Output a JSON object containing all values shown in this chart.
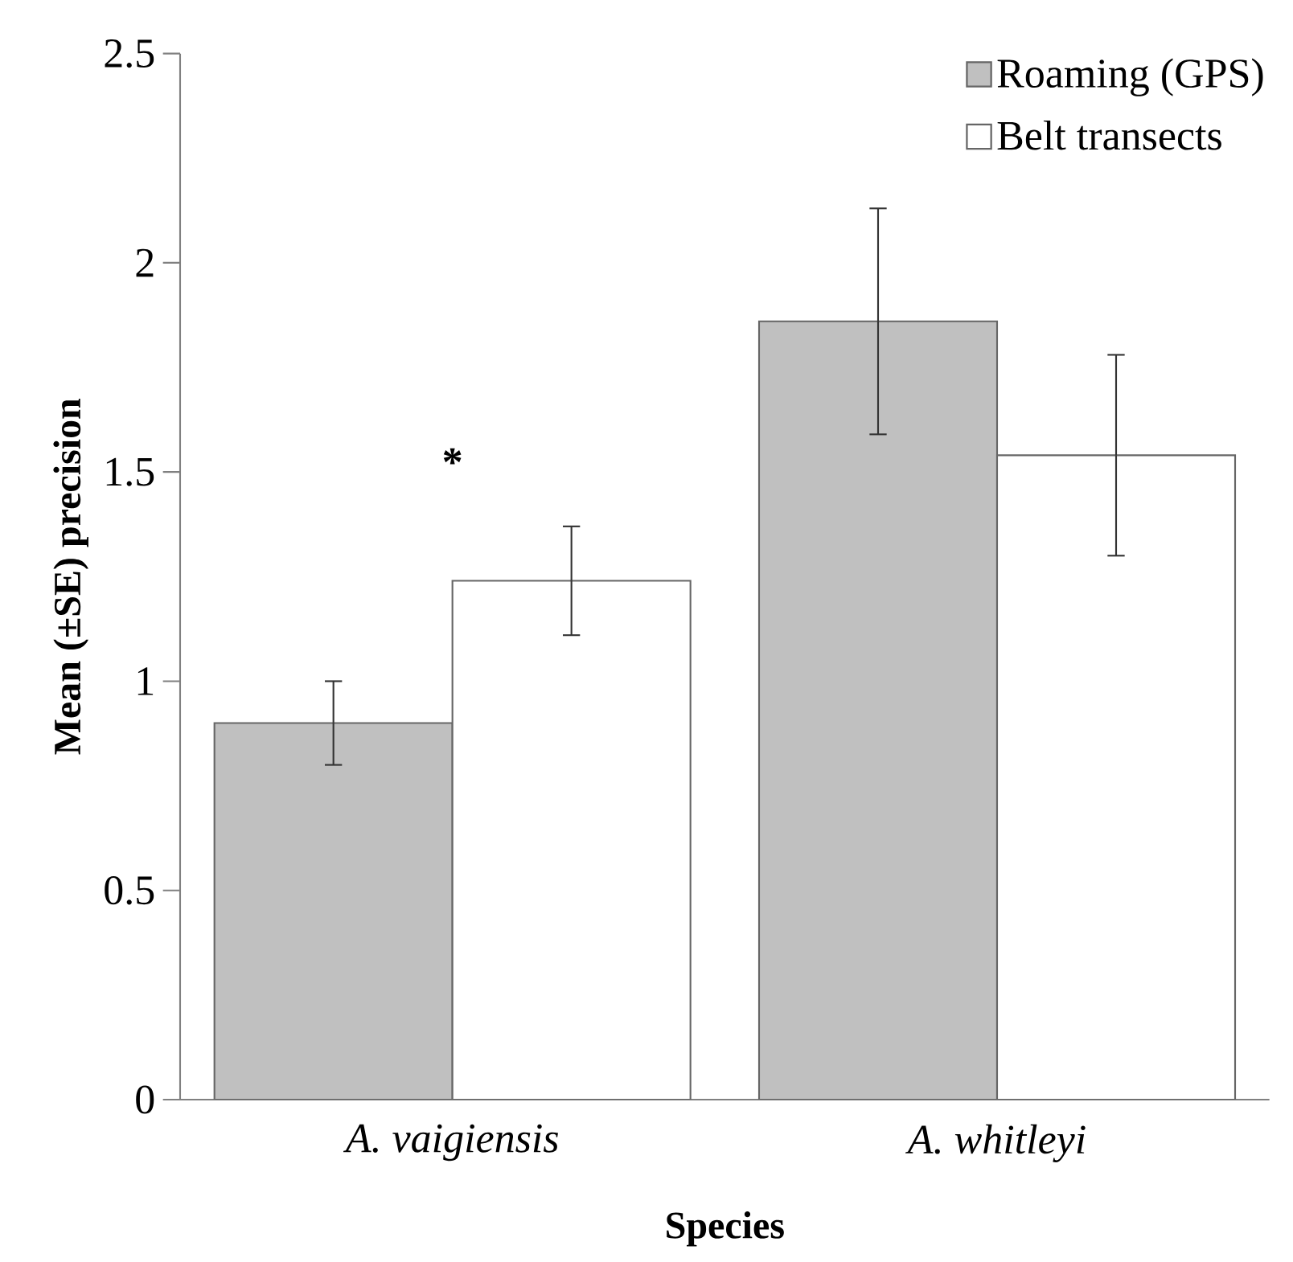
{
  "chart_data": {
    "type": "bar",
    "xlabel": "Species",
    "ylabel": "Mean (±SE) precision",
    "categories": [
      "A. vaigiensis",
      "A. whitleyi"
    ],
    "series": [
      {
        "name": "Roaming (GPS)",
        "color": "#c0c0c0",
        "values": [
          0.9,
          1.86
        ],
        "errors": [
          0.1,
          0.27
        ]
      },
      {
        "name": "Belt transects",
        "color": "#ffffff",
        "values": [
          1.24,
          1.54
        ],
        "errors": [
          0.13,
          0.24
        ]
      }
    ],
    "ylim": [
      0,
      2.5
    ],
    "yticks": [
      0,
      0.5,
      1,
      1.5,
      2,
      2.5
    ],
    "annotations": [
      "*"
    ],
    "grid": false,
    "legend": "top right"
  }
}
